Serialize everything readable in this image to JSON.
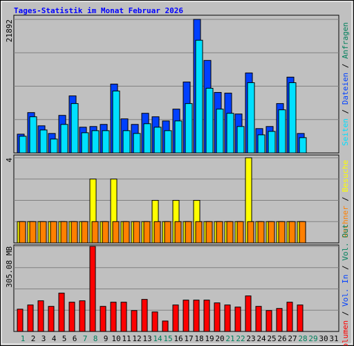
{
  "chart_data": [
    {
      "type": "bar",
      "title": "Tages-Statistik im Monat Februar 2026",
      "ylim": [
        0,
        21892
      ],
      "yticks": [
        21892
      ],
      "separator": " / ",
      "series": [
        {
          "name": "Dateien",
          "color": "#0040ff",
          "values": [
            3078,
            6613,
            4447,
            3193,
            6157,
            9350,
            4219,
            4333,
            4675,
            11288,
            5587,
            4675,
            6499,
            5929,
            5245,
            7183,
            11630,
            21892,
            15165,
            9920,
            9806,
            6385,
            13112,
            3991,
            4333,
            8095,
            12428,
            3193,
            null,
            null,
            null
          ]
        },
        {
          "name": "Seiten",
          "color": "#00e0ff",
          "values": [
            2736,
            5929,
            3763,
            2280,
            4675,
            8095,
            3307,
            3649,
            3649,
            10148,
            3649,
            3193,
            4789,
            4219,
            3649,
            5245,
            8095,
            18472,
            10604,
            7183,
            6499,
            4333,
            11516,
            2965,
            3535,
            7069,
            11516,
            2508,
            null,
            null,
            null
          ]
        }
      ],
      "legend_extra": [
        {
          "name": "Anfragen",
          "color": "#00805c"
        }
      ]
    },
    {
      "type": "bar",
      "ylim": [
        0,
        4
      ],
      "yticks": [
        4
      ],
      "separator": " / ",
      "series": [
        {
          "name": "Besuche",
          "color": "#ffff00",
          "values": [
            1,
            1,
            1,
            1,
            1,
            1,
            1,
            3,
            1,
            3,
            1,
            1,
            1,
            2,
            1,
            2,
            1,
            2,
            1,
            1,
            1,
            1,
            4,
            1,
            1,
            1,
            1,
            1,
            null,
            null,
            null
          ]
        },
        {
          "name": "Rechner",
          "color": "#ff8000",
          "values": [
            1,
            1,
            1,
            1,
            1,
            1,
            1,
            1,
            1,
            1,
            1,
            1,
            1,
            1,
            1,
            1,
            1,
            1,
            1,
            1,
            1,
            1,
            1,
            1,
            1,
            1,
            1,
            1,
            null,
            null,
            null
          ]
        }
      ],
      "legend_extra": []
    },
    {
      "type": "bar",
      "ylim": [
        0,
        305.08
      ],
      "yticks": [
        {
          "value": 305.08,
          "label": "305.08 MB"
        }
      ],
      "separator": " / ",
      "series": [
        {
          "name": "Volumen",
          "color": "#ff0000",
          "values": [
            80.0,
            95.0,
            110.0,
            90.0,
            137.5,
            105.0,
            110.0,
            305.08,
            90.0,
            105.0,
            105.0,
            75.0,
            115.0,
            70.0,
            37.5,
            95.0,
            112.5,
            112.5,
            112.5,
            102.5,
            95.0,
            87.5,
            127.5,
            90.0,
            75.0,
            82.5,
            105.0,
            95.0,
            null,
            null,
            null
          ]
        }
      ],
      "legend_extra": [
        {
          "name": "Vol. In",
          "color": "#0040ff"
        },
        {
          "name": "Vol. Out",
          "color": "#00805c"
        }
      ],
      "categories": [
        "1",
        "2",
        "3",
        "4",
        "5",
        "6",
        "7",
        "8",
        "9",
        "10",
        "11",
        "12",
        "13",
        "14",
        "15",
        "16",
        "17",
        "18",
        "19",
        "20",
        "21",
        "22",
        "23",
        "24",
        "25",
        "26",
        "27",
        "28",
        "29",
        "30",
        "31"
      ],
      "category_colors": [
        "#00805c",
        "#000000",
        "#000000",
        "#000000",
        "#000000",
        "#000000",
        "#00805c",
        "#00805c",
        "#000000",
        "#000000",
        "#000000",
        "#000000",
        "#000000",
        "#00805c",
        "#00805c",
        "#000000",
        "#000000",
        "#000000",
        "#000000",
        "#000000",
        "#00805c",
        "#00805c",
        "#000000",
        "#000000",
        "#000000",
        "#000000",
        "#000000",
        "#00805c",
        "#00805c",
        "#000000",
        "#000000"
      ]
    }
  ]
}
